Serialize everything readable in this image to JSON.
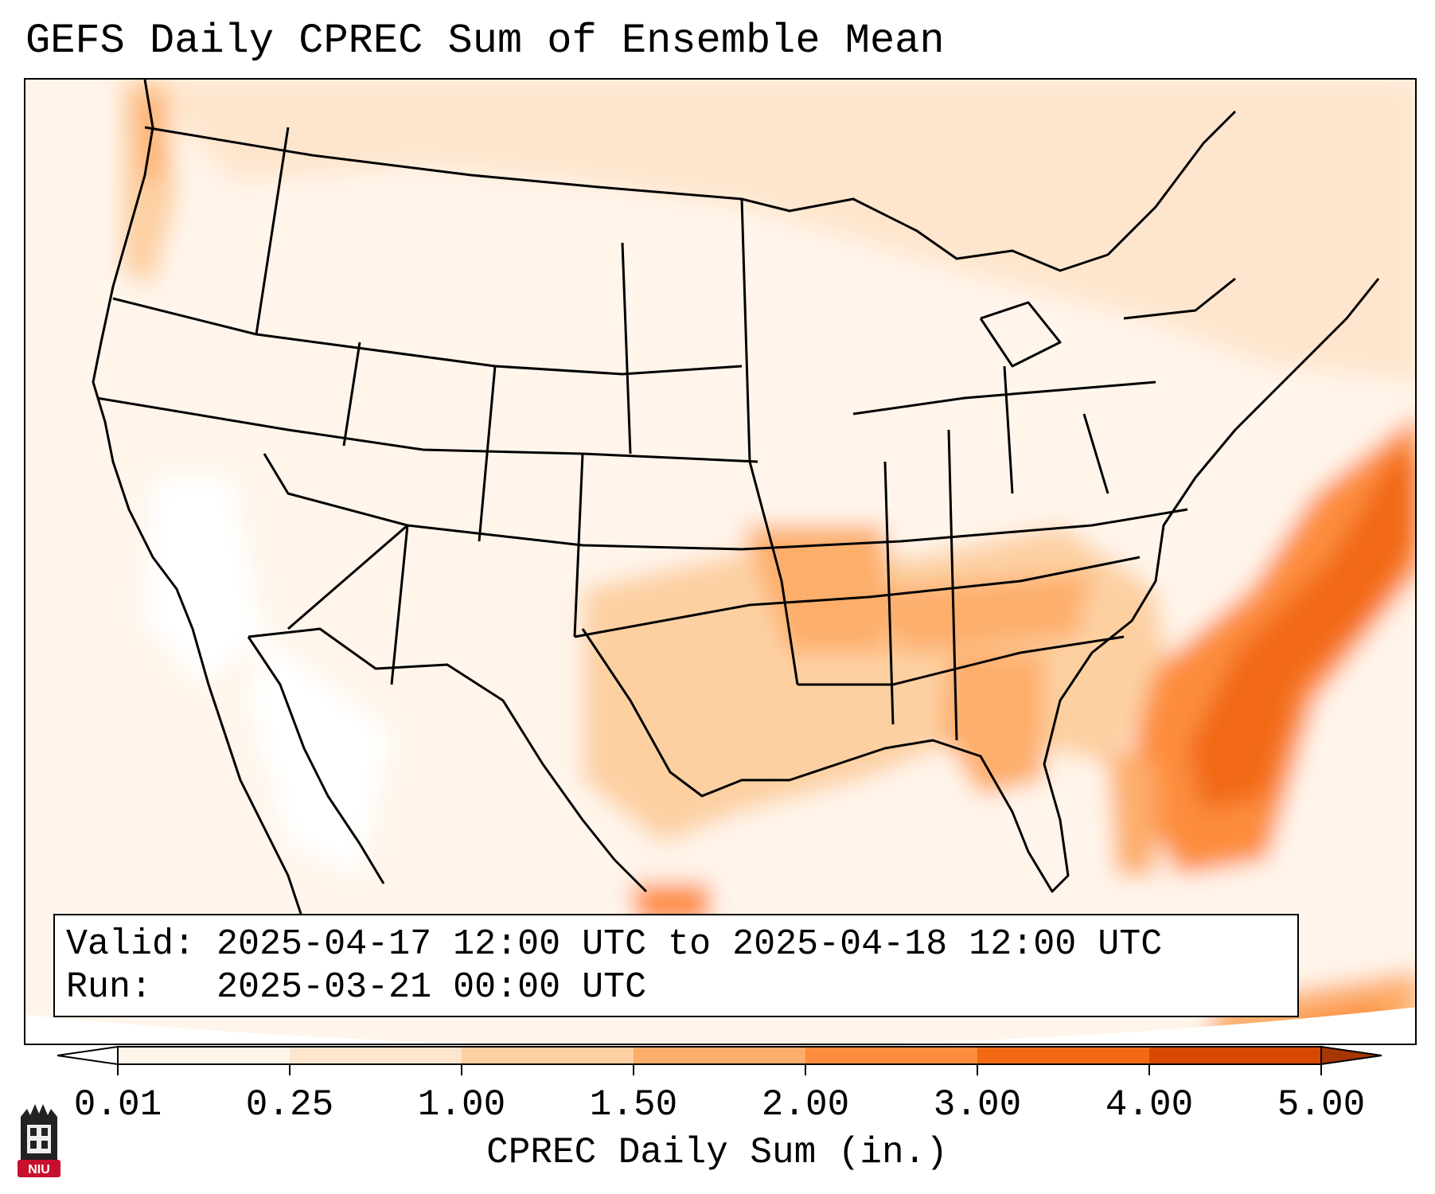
{
  "title": "GEFS Daily CPREC Sum of Ensemble Mean",
  "infobox": {
    "valid_label": "Valid:",
    "valid_value": "2025-04-17 12:00 UTC to 2025-04-18 12:00 UTC",
    "run_label": "Run:",
    "run_value": "2025-03-21 00:00 UTC"
  },
  "colorbar": {
    "label": "CPREC Daily Sum (in.)",
    "ticks": [
      "0.01",
      "0.25",
      "1.00",
      "1.50",
      "2.00",
      "3.00",
      "4.00",
      "5.00"
    ],
    "colors": [
      "#fff5eb",
      "#fee6ce",
      "#fdd0a2",
      "#fdae6b",
      "#fd8d3c",
      "#f16913",
      "#d94801",
      "#a63603"
    ]
  },
  "logo": {
    "text": "NIU",
    "icon": "university-tower-icon",
    "color": "#c8102e"
  }
}
